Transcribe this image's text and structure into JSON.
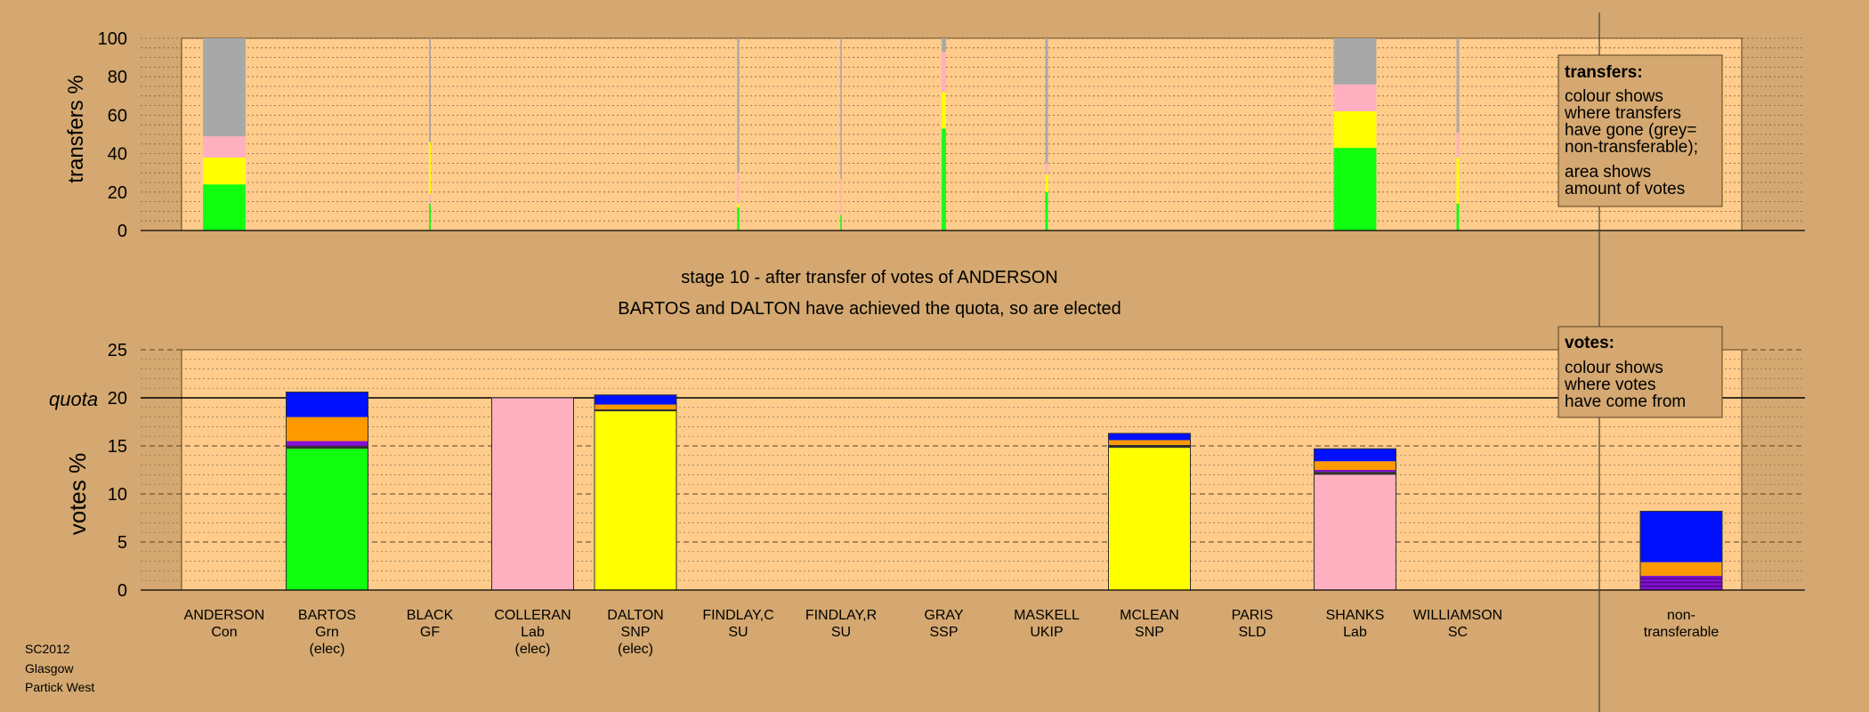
{
  "colors": {
    "background": "#d4a870",
    "plot_bg": "#ffcc8c",
    "grey": "#a8a8a8",
    "pink": "#ffb0c0",
    "yellow": "#ffff00",
    "green": "#10ff10",
    "orange": "#ff9900",
    "purple": "#8010d0",
    "blue": "#0010ff",
    "dark": "#303030"
  },
  "stage": {
    "title_line1": "stage 10 - after transfer of votes of ANDERSON",
    "title_line2": "BARTOS and DALTON have achieved the quota, so are elected"
  },
  "footer": {
    "line1": "SC2012",
    "line2": "Glasgow",
    "line3": "Partick West"
  },
  "candidates": [
    {
      "name": "ANDERSON",
      "party": "Con",
      "status": ""
    },
    {
      "name": "BARTOS",
      "party": "Grn",
      "status": "(elec)"
    },
    {
      "name": "BLACK",
      "party": "GF",
      "status": ""
    },
    {
      "name": "COLLERAN",
      "party": "Lab",
      "status": "(elec)"
    },
    {
      "name": "DALTON",
      "party": "SNP",
      "status": "(elec)"
    },
    {
      "name": "FINDLAY,C",
      "party": "SU",
      "status": ""
    },
    {
      "name": "FINDLAY,R",
      "party": "SU",
      "status": ""
    },
    {
      "name": "GRAY",
      "party": "SSP",
      "status": ""
    },
    {
      "name": "MASKELL",
      "party": "UKIP",
      "status": ""
    },
    {
      "name": "MCLEAN",
      "party": "SNP",
      "status": ""
    },
    {
      "name": "PARIS",
      "party": "SLD",
      "status": ""
    },
    {
      "name": "SHANKS",
      "party": "Lab",
      "status": ""
    },
    {
      "name": "WILLIAMSON",
      "party": "SC",
      "status": ""
    }
  ],
  "nontransferable": {
    "line1": "non-",
    "line2": "transferable"
  },
  "chart_data": [
    {
      "type": "bar",
      "id": "transfers",
      "ylabel": "transfers %",
      "ylim": [
        0,
        100
      ],
      "ticks": [
        0,
        20,
        40,
        60,
        80,
        100
      ],
      "grid": true,
      "legend": {
        "title": "transfers:",
        "lines": [
          "colour shows",
          "where transfers",
          "have gone (grey=",
          "non-transferable);",
          "area shows",
          "amount of votes"
        ]
      },
      "widths": [
        1.0,
        0,
        0.04,
        0,
        0,
        0.05,
        0.03,
        0.1,
        0.06,
        0,
        0,
        1.0,
        0.06
      ],
      "stacks": [
        [
          {
            "c": "green",
            "v": 24
          },
          {
            "c": "yellow",
            "v": 14
          },
          {
            "c": "pink",
            "v": 11
          },
          {
            "c": "grey",
            "v": 51
          }
        ],
        [],
        [
          {
            "c": "green",
            "v": 14
          },
          {
            "c": "pink",
            "v": 5
          },
          {
            "c": "yellow",
            "v": 27
          },
          {
            "c": "grey",
            "v": 54
          }
        ],
        [],
        [],
        [
          {
            "c": "green",
            "v": 12
          },
          {
            "c": "yellow",
            "v": 2
          },
          {
            "c": "pink",
            "v": 16
          },
          {
            "c": "grey",
            "v": 70
          }
        ],
        [
          {
            "c": "green",
            "v": 8
          },
          {
            "c": "pink",
            "v": 19
          },
          {
            "c": "grey",
            "v": 73
          }
        ],
        [
          {
            "c": "green",
            "v": 53
          },
          {
            "c": "yellow",
            "v": 19
          },
          {
            "c": "pink",
            "v": 21
          },
          {
            "c": "grey",
            "v": 7
          }
        ],
        [
          {
            "c": "green",
            "v": 20
          },
          {
            "c": "yellow",
            "v": 9
          },
          {
            "c": "pink",
            "v": 6
          },
          {
            "c": "grey",
            "v": 65
          }
        ],
        [],
        [],
        [
          {
            "c": "green",
            "v": 43
          },
          {
            "c": "yellow",
            "v": 19
          },
          {
            "c": "pink",
            "v": 14
          },
          {
            "c": "grey",
            "v": 24
          }
        ],
        [
          {
            "c": "green",
            "v": 14
          },
          {
            "c": "yellow",
            "v": 24
          },
          {
            "c": "pink",
            "v": 13
          },
          {
            "c": "grey",
            "v": 49
          }
        ]
      ]
    },
    {
      "type": "bar",
      "id": "votes",
      "ylabel": "votes %",
      "ylim": [
        0,
        25
      ],
      "ticks": [
        0,
        5,
        10,
        15,
        20,
        25
      ],
      "quota_label": "quota",
      "quota": 20,
      "grid": true,
      "legend": {
        "title": "votes:",
        "lines": [
          "colour shows",
          "where votes",
          "have come from"
        ]
      },
      "stacks": [
        [],
        [
          {
            "c": "green",
            "v": 14.7
          },
          {
            "c": "dark",
            "v": 0.3
          },
          {
            "c": "purple",
            "v": 0.5
          },
          {
            "c": "orange",
            "v": 0.2
          },
          {
            "c": "orange",
            "v": 2.3
          },
          {
            "c": "blue",
            "v": 2.6
          }
        ],
        [],
        [
          {
            "c": "pink",
            "v": 20.0
          }
        ],
        [
          {
            "c": "yellow",
            "v": 18.6
          },
          {
            "c": "dark",
            "v": 0.2
          },
          {
            "c": "orange",
            "v": 0.5
          },
          {
            "c": "blue",
            "v": 1.0
          }
        ],
        [],
        [],
        [],
        [],
        [
          {
            "c": "yellow",
            "v": 14.8
          },
          {
            "c": "dark",
            "v": 0.3
          },
          {
            "c": "orange",
            "v": 0.5
          },
          {
            "c": "blue",
            "v": 0.7
          }
        ],
        [],
        [
          {
            "c": "pink",
            "v": 12.0
          },
          {
            "c": "dark",
            "v": 0.3
          },
          {
            "c": "purple",
            "v": 0.2
          },
          {
            "c": "orange",
            "v": 0.9
          },
          {
            "c": "blue",
            "v": 1.3
          }
        ],
        []
      ],
      "nontransferable_stack": [
        {
          "c": "purple",
          "v": 1.5
        },
        {
          "c": "orange",
          "v": 1.4
        },
        {
          "c": "blue",
          "v": 5.3
        }
      ]
    }
  ]
}
